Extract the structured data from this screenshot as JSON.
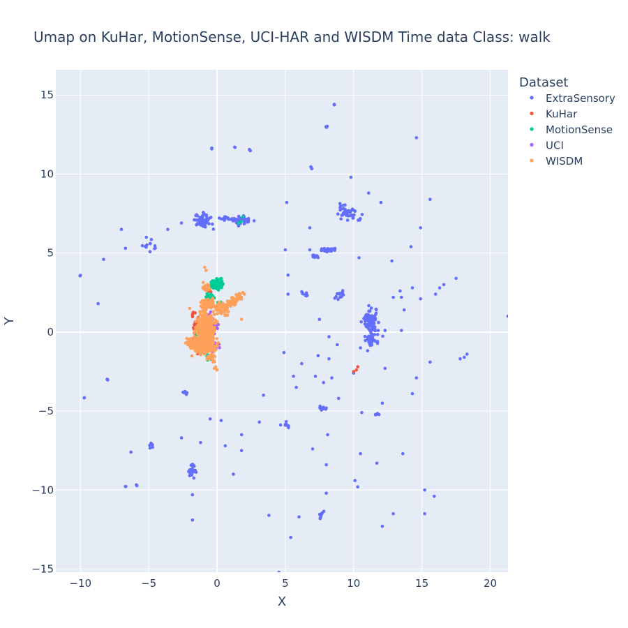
{
  "chart_data": {
    "type": "scatter",
    "title": "Umap on KuHar, MotionSense, UCI-HAR and WISDM   Time data   Class: walk",
    "xlabel": "X",
    "ylabel": "Y",
    "xlim": [
      -11.8,
      21.3
    ],
    "ylim": [
      -15.2,
      16.6
    ],
    "xticks": [
      -10,
      -5,
      0,
      5,
      10,
      15,
      20
    ],
    "yticks": [
      -15,
      -10,
      -5,
      0,
      5,
      10,
      15
    ],
    "xtick_labels": [
      "−10",
      "−5",
      "0",
      "5",
      "10",
      "15",
      "20"
    ],
    "ytick_labels": [
      "−15",
      "−10",
      "−5",
      "0",
      "5",
      "10",
      "15"
    ],
    "grid": true,
    "legend": {
      "title": "Dataset",
      "placement": "right"
    },
    "series": [
      {
        "name": "ExtraSensory",
        "color": "#636efa",
        "clusters": [
          [
            -1.0,
            7.0,
            0.5,
            0.35,
            60
          ],
          [
            1.8,
            7.1,
            0.55,
            0.25,
            45
          ],
          [
            0.8,
            7.2,
            0.4,
            0.1,
            15
          ],
          [
            9.6,
            7.6,
            0.6,
            0.45,
            45
          ],
          [
            8.2,
            5.2,
            0.6,
            0.12,
            30
          ],
          [
            7.2,
            4.8,
            0.3,
            0.1,
            10
          ],
          [
            11.2,
            0.7,
            0.35,
            0.6,
            90
          ],
          [
            11.3,
            -0.5,
            0.4,
            0.4,
            40
          ],
          [
            9.0,
            2.3,
            0.3,
            0.2,
            15
          ],
          [
            -1.8,
            -8.8,
            0.2,
            0.4,
            25
          ],
          [
            -4.8,
            -7.2,
            0.15,
            0.2,
            6
          ],
          [
            -2.3,
            -3.8,
            0.2,
            0.1,
            8
          ],
          [
            7.6,
            -11.5,
            0.15,
            0.4,
            8
          ],
          [
            7.7,
            -4.8,
            0.3,
            0.1,
            12
          ],
          [
            11.7,
            -5.2,
            0.25,
            0.05,
            8
          ],
          [
            6.5,
            2.4,
            0.3,
            0.2,
            10
          ],
          [
            -5.0,
            5.5,
            0.6,
            0.3,
            12
          ],
          [
            5.0,
            -5.9,
            0.3,
            0.2,
            8
          ],
          [
            8.6,
            14.4,
            0.05,
            0.05,
            3
          ],
          [
            8.0,
            13.0,
            0.05,
            0.05,
            3
          ],
          [
            -0.4,
            11.6,
            0.05,
            0.05,
            2
          ],
          [
            1.3,
            11.7,
            0.05,
            0.05,
            2
          ],
          [
            2.4,
            11.5,
            0.08,
            0.05,
            3
          ],
          [
            6.9,
            10.4,
            0.05,
            0.05,
            3
          ],
          [
            -10.0,
            3.6,
            0.05,
            0.05,
            2
          ],
          [
            -9.7,
            -4.2,
            0.05,
            0.05,
            2
          ],
          [
            -8.0,
            -3.0,
            0.08,
            0.05,
            3
          ],
          [
            -5.9,
            -9.7,
            0.05,
            0.05,
            2
          ],
          [
            -6.7,
            -9.8,
            0.05,
            0.05,
            2
          ],
          [
            4.5,
            -15.2,
            0.1,
            0.05,
            3
          ]
        ],
        "singles": [
          [
            -8.3,
            4.6
          ],
          [
            -7.0,
            6.5
          ],
          [
            -6.7,
            5.3
          ],
          [
            -3.6,
            6.5
          ],
          [
            -8.7,
            1.8
          ],
          [
            -6.3,
            -7.6
          ],
          [
            -2.6,
            -6.7
          ],
          [
            -1.2,
            -7.0
          ],
          [
            -0.5,
            -5.5
          ],
          [
            0.3,
            -5.6
          ],
          [
            0.6,
            -7.2
          ],
          [
            1.2,
            -9.0
          ],
          [
            1.8,
            -6.5
          ],
          [
            1.8,
            -7.5
          ],
          [
            3.1,
            -5.7
          ],
          [
            3.4,
            -4.0
          ],
          [
            -1.8,
            -10.3
          ],
          [
            -1.8,
            -11.9
          ],
          [
            3.8,
            -11.6
          ],
          [
            5.4,
            -13.0
          ],
          [
            6.0,
            -11.7
          ],
          [
            5.6,
            -2.8
          ],
          [
            5.8,
            -3.5
          ],
          [
            6.2,
            -2.0
          ],
          [
            4.9,
            -1.3
          ],
          [
            5.2,
            2.4
          ],
          [
            5.2,
            3.6
          ],
          [
            5.1,
            8.2
          ],
          [
            5.0,
            5.2
          ],
          [
            6.8,
            6.6
          ],
          [
            6.8,
            5.2
          ],
          [
            7.5,
            0.8
          ],
          [
            7.4,
            -1.5
          ],
          [
            7.2,
            -2.8
          ],
          [
            7.8,
            -3.2
          ],
          [
            8.2,
            -0.3
          ],
          [
            8.2,
            -1.7
          ],
          [
            8.4,
            -2.9
          ],
          [
            8.8,
            -0.8
          ],
          [
            8.9,
            -4.2
          ],
          [
            8.1,
            -6.5
          ],
          [
            7.0,
            -7.4
          ],
          [
            8.0,
            -8.4
          ],
          [
            8.0,
            -10.2
          ],
          [
            10.1,
            -9.4
          ],
          [
            10.3,
            -9.8
          ],
          [
            10.5,
            -7.7
          ],
          [
            10.6,
            -5.1
          ],
          [
            11.7,
            -8.3
          ],
          [
            12.1,
            -4.5
          ],
          [
            12.1,
            -12.3
          ],
          [
            12.9,
            -11.5
          ],
          [
            12.3,
            -2.3
          ],
          [
            10.0,
            -2.6
          ],
          [
            12.8,
            4.5
          ],
          [
            13.5,
            0.1
          ],
          [
            13.6,
            -7.7
          ],
          [
            14.3,
            -3.9
          ],
          [
            14.6,
            -2.9
          ],
          [
            15.2,
            -10.0
          ],
          [
            15.2,
            -11.5
          ],
          [
            15.6,
            -1.9
          ],
          [
            15.9,
            -10.4
          ],
          [
            14.6,
            12.3
          ],
          [
            15.6,
            8.4
          ],
          [
            14.9,
            6.6
          ],
          [
            14.2,
            5.4
          ],
          [
            14.9,
            2.1
          ],
          [
            14.3,
            2.8
          ],
          [
            13.5,
            2.2
          ],
          [
            13.7,
            1.4
          ],
          [
            12.9,
            2.2
          ],
          [
            13.4,
            2.6
          ],
          [
            16.0,
            2.4
          ],
          [
            16.3,
            2.8
          ],
          [
            16.6,
            3.0
          ],
          [
            17.5,
            3.4
          ],
          [
            17.8,
            -1.7
          ],
          [
            18.1,
            -1.6
          ],
          [
            18.3,
            -1.4
          ],
          [
            21.3,
            1.0
          ],
          [
            12.0,
            8.2
          ],
          [
            11.1,
            8.8
          ],
          [
            10.4,
            4.7
          ],
          [
            9.8,
            9.8
          ],
          [
            11.8,
            0.1
          ],
          [
            -2.6,
            6.9
          ],
          [
            10.5,
            -1.0
          ],
          [
            12.3,
            0.1
          ]
        ]
      },
      {
        "name": "KuHar",
        "color": "#ef553b",
        "clusters": [
          [
            -1.5,
            0.5,
            0.25,
            0.5,
            20
          ],
          [
            -1.0,
            -1.0,
            0.3,
            0.3,
            12
          ],
          [
            -1.8,
            1.2,
            0.15,
            0.2,
            6
          ],
          [
            -0.6,
            2.5,
            0.15,
            0.2,
            5
          ],
          [
            -1.7,
            -0.7,
            0.2,
            0.3,
            8
          ]
        ],
        "singles": [
          [
            10.2,
            -2.4
          ],
          [
            10.3,
            -2.2
          ],
          [
            10.0,
            -2.5
          ]
        ]
      },
      {
        "name": "MotionSense",
        "color": "#00cc96",
        "clusters": [
          [
            0.0,
            3.0,
            0.35,
            0.25,
            110
          ],
          [
            -0.5,
            2.2,
            0.3,
            0.25,
            30
          ],
          [
            0.2,
            1.7,
            0.25,
            0.15,
            15
          ],
          [
            -0.6,
            -1.5,
            0.15,
            0.2,
            8
          ],
          [
            -1.3,
            -0.2,
            0.2,
            0.4,
            10
          ]
        ],
        "singles": [
          [
            1.8,
            7.0
          ],
          [
            1.9,
            7.3
          ],
          [
            1.6,
            6.9
          ]
        ]
      },
      {
        "name": "UCI",
        "color": "#ab63fa",
        "clusters": [
          [
            -0.3,
            0.2,
            0.3,
            0.3,
            35
          ],
          [
            -0.2,
            -0.8,
            0.3,
            0.3,
            20
          ],
          [
            -0.5,
            1.0,
            0.2,
            0.2,
            10
          ]
        ],
        "singles": []
      },
      {
        "name": "WISDM",
        "color": "#ffa15a",
        "clusters": [
          [
            -0.8,
            0.2,
            0.45,
            0.7,
            550
          ],
          [
            -0.9,
            -0.9,
            0.6,
            0.35,
            220
          ],
          [
            -1.8,
            -0.7,
            0.35,
            0.25,
            60
          ],
          [
            -0.7,
            1.8,
            0.35,
            0.25,
            90
          ],
          [
            0.3,
            1.5,
            0.45,
            0.3,
            80
          ],
          [
            1.1,
            1.9,
            0.3,
            0.2,
            40
          ],
          [
            1.6,
            2.2,
            0.2,
            0.15,
            20
          ],
          [
            -0.8,
            2.8,
            0.2,
            0.25,
            25
          ],
          [
            -0.4,
            -1.6,
            0.3,
            0.2,
            30
          ]
        ],
        "singles": [
          [
            -0.9,
            4.1
          ],
          [
            -0.8,
            3.9
          ],
          [
            0.0,
            -2.4
          ],
          [
            -0.1,
            -2.2
          ],
          [
            1.8,
            0.8
          ],
          [
            2.0,
            2.4
          ],
          [
            1.9,
            2.5
          ],
          [
            -2.0,
            1.5
          ],
          [
            -0.2,
            -2.3
          ]
        ]
      }
    ]
  }
}
